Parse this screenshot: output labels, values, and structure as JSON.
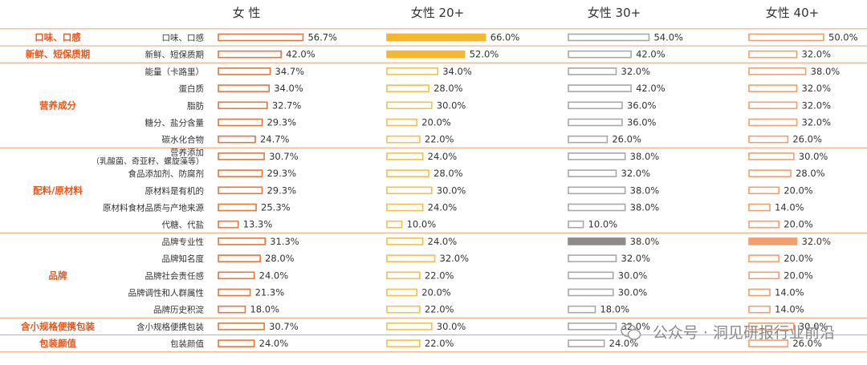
{
  "chart_data": {
    "type": "bar",
    "columns": [
      "女 性",
      "女性 20+",
      "女性 30+",
      "女性 40+"
    ],
    "groups": [
      {
        "name": "口味、口感",
        "items": [
          "口味、口感"
        ]
      },
      {
        "name": "新鲜、短保质期",
        "items": [
          "新鲜、短保质期"
        ]
      },
      {
        "name": "营养成分",
        "items": [
          "能量（卡路里）",
          "蛋白质",
          "脂肪",
          "糖分、盐分含量",
          "碳水化合物"
        ]
      },
      {
        "name": "配料/原材料",
        "items": [
          "营养添加\n（乳酸菌、奇亚籽、螺旋藻等）",
          "食品添加剂、防腐剂",
          "原材料是有机的",
          "原材料食材品质与产地来源",
          "代糖、代盐"
        ]
      },
      {
        "name": "品牌",
        "items": [
          "品牌专业性",
          "品牌知名度",
          "品牌社会责任感",
          "品牌调性和人群属性",
          "品牌历史积淀"
        ]
      },
      {
        "name": "含小规格便携包装",
        "items": [
          "含小规格便携包装"
        ]
      },
      {
        "name": "包装颜值",
        "items": [
          "包装颜值"
        ]
      }
    ],
    "series": [
      {
        "name": "女 性",
        "values": [
          56.7,
          42.0,
          34.7,
          34.0,
          32.7,
          29.3,
          24.7,
          30.7,
          29.3,
          29.3,
          25.3,
          13.3,
          31.3,
          28.0,
          24.0,
          21.3,
          18.0,
          30.7,
          24.0
        ]
      },
      {
        "name": "女性 20+",
        "values": [
          66.0,
          52.0,
          34.0,
          28.0,
          30.0,
          20.0,
          22.0,
          24.0,
          28.0,
          30.0,
          24.0,
          10.0,
          24.0,
          32.0,
          22.0,
          20.0,
          22.0,
          30.0,
          22.0
        ]
      },
      {
        "name": "女性 30+",
        "values": [
          54.0,
          42.0,
          32.0,
          42.0,
          36.0,
          36.0,
          26.0,
          38.0,
          32.0,
          38.0,
          38.0,
          10.0,
          38.0,
          32.0,
          30.0,
          30.0,
          18.0,
          32.0,
          24.0
        ]
      },
      {
        "name": "女性 40+",
        "values": [
          50.0,
          32.0,
          38.0,
          32.0,
          32.0,
          32.0,
          26.0,
          30.0,
          28.0,
          20.0,
          14.0,
          20.0,
          32.0,
          20.0,
          20.0,
          14.0,
          14.0,
          30.0,
          26.0
        ]
      }
    ],
    "value_format": "%.1f%",
    "highlights": [
      {
        "series": 1,
        "row": 0,
        "color": "#f5b730"
      },
      {
        "series": 1,
        "row": 1,
        "color": "#f5b730"
      },
      {
        "series": 2,
        "row": 12,
        "color": "#8c8c8c"
      },
      {
        "series": 3,
        "row": 12,
        "color": "#f0a070"
      }
    ],
    "outline_colors": [
      "#e8763a",
      "#f3c04a",
      "#a8a8a8",
      "#f0a070"
    ],
    "group_label_color": "#e8581c",
    "divider_color": "#f0a070"
  },
  "footer": {
    "brand_icon": "wechat-icon",
    "label": "公众号 · 洞见研报行业前沿"
  }
}
